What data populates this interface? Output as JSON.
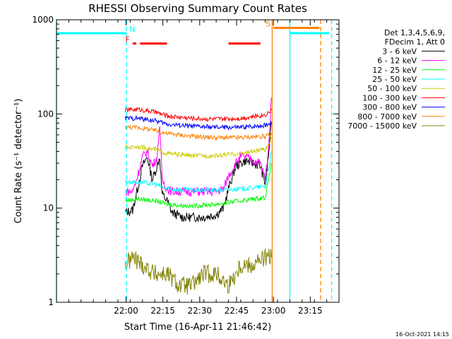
{
  "chart_data": {
    "type": "line",
    "title": "RHESSI Observing Summary Count Rates",
    "xlabel": "Start Time (16-Apr-11 21:46:42)",
    "ylabel": "Count Rate (s⁻¹ detector⁻¹)",
    "xlim_min": [
      -15,
      100
    ],
    "ylim": [
      1,
      1000
    ],
    "yscale": "log",
    "x_ticks": [
      {
        "label": "22:00",
        "min": 13.3
      },
      {
        "label": "22:15",
        "min": 28.3
      },
      {
        "label": "22:30",
        "min": 43.3
      },
      {
        "label": "22:45",
        "min": 58.3
      },
      {
        "label": "23:00",
        "min": 73.3
      },
      {
        "label": "23:15",
        "min": 88.3
      }
    ],
    "y_ticks": [
      {
        "label": "1",
        "value": 1
      },
      {
        "label": "10",
        "value": 10
      },
      {
        "label": "100",
        "value": 100
      },
      {
        "label": "1000",
        "value": 1000
      }
    ],
    "legend_header": [
      "Det 1,3,4,5,6,9,",
      "FDecim 1, Att 0"
    ],
    "series": [
      {
        "name": "3 - 6 keV",
        "color": "#000000",
        "x": [
          13,
          16,
          18,
          20,
          22,
          24,
          26,
          27,
          28,
          30,
          32,
          34,
          36,
          40,
          45,
          50,
          53,
          55,
          58,
          60,
          62,
          65,
          68,
          70,
          71.5,
          72.5
        ],
        "y": [
          9,
          9.5,
          16,
          28,
          35,
          20,
          28,
          35,
          14,
          12,
          9,
          8.5,
          8,
          8,
          8,
          8.5,
          10,
          16,
          28,
          30,
          32,
          30,
          28,
          18,
          40,
          80
        ]
      },
      {
        "name": "6 - 12 keV",
        "color": "#ff00ff",
        "x": [
          13,
          16,
          18,
          20,
          22,
          24,
          26,
          27,
          28,
          30,
          32,
          35,
          40,
          45,
          50,
          53,
          55,
          58,
          60,
          62,
          65,
          68,
          70,
          71.5,
          72.5
        ],
        "y": [
          15,
          15,
          22,
          35,
          40,
          28,
          35,
          80,
          20,
          16,
          15,
          15,
          15,
          15,
          15,
          16,
          22,
          30,
          35,
          35,
          32,
          30,
          20,
          50,
          150
        ]
      },
      {
        "name": "12 - 25 keV",
        "color": "#00ff00",
        "x": [
          13,
          18,
          25,
          30,
          40,
          50,
          60,
          70,
          72.5
        ],
        "y": [
          12,
          12.5,
          12,
          11,
          10.5,
          11,
          12,
          13,
          30
        ]
      },
      {
        "name": "25 - 50 keV",
        "color": "#00ffff",
        "x": [
          13,
          18,
          25,
          30,
          40,
          50,
          60,
          70,
          72.5
        ],
        "y": [
          19,
          19,
          18,
          16,
          15.5,
          15.5,
          16,
          17,
          40
        ]
      },
      {
        "name": "50 - 100 keV",
        "color": "#cccc00",
        "x": [
          13,
          18,
          25,
          30,
          40,
          50,
          60,
          70,
          72.5
        ],
        "y": [
          44,
          45,
          42,
          38,
          36,
          36,
          38,
          42,
          55
        ]
      },
      {
        "name": "100 - 300 keV",
        "color": "#ff0000",
        "x": [
          13,
          18,
          25,
          30,
          40,
          50,
          60,
          70,
          72.5
        ],
        "y": [
          110,
          112,
          105,
          95,
          90,
          88,
          90,
          98,
          110
        ]
      },
      {
        "name": "300 - 800 keV",
        "color": "#0000ff",
        "x": [
          13,
          18,
          25,
          30,
          40,
          50,
          60,
          70,
          72.5
        ],
        "y": [
          90,
          90,
          85,
          78,
          74,
          72,
          72,
          76,
          80
        ]
      },
      {
        "name": "800 - 7000 keV",
        "color": "#ff8000",
        "x": [
          13,
          18,
          25,
          30,
          40,
          50,
          60,
          70,
          72.5
        ],
        "y": [
          72,
          72,
          67,
          62,
          58,
          56,
          56,
          58,
          60
        ]
      },
      {
        "name": "7000 - 15000 keV",
        "color": "#808000",
        "x": [
          13,
          16,
          20,
          25,
          30,
          35,
          40,
          45,
          50,
          55,
          60,
          65,
          70,
          72.5
        ],
        "y": [
          2.5,
          3,
          2.5,
          2,
          2,
          1.5,
          1.5,
          2,
          2,
          1.5,
          2.5,
          2.5,
          3,
          3
        ]
      }
    ],
    "flags": [
      {
        "label": "N",
        "color": "#00ffff",
        "y": 720,
        "segments": [
          [
            -15,
            13.5
          ],
          [
            80,
            96
          ]
        ]
      },
      {
        "label": "S",
        "color": "#ff8000",
        "y": 820,
        "segments": [
          [
            73.3,
            92
          ]
        ]
      },
      {
        "label": "F",
        "color": "#ff0000",
        "y": 560,
        "segments": [
          [
            16,
            17.5
          ],
          [
            19,
            30
          ],
          [
            55,
            68
          ]
        ]
      }
    ],
    "markers": [
      {
        "color": "#00ffff",
        "style": "solid",
        "x": -15
      },
      {
        "color": "#00ffff",
        "style": "dashed",
        "x": 13.5
      },
      {
        "color": "#ff8000",
        "style": "solid",
        "x": 72.8
      },
      {
        "color": "#00ffff",
        "style": "solid",
        "x": 80
      },
      {
        "color": "#ff8000",
        "style": "dashed",
        "x": 92.5
      },
      {
        "color": "#00ffff",
        "style": "dashed",
        "x": 97
      }
    ],
    "footer": "16-Oct-2021 14:15"
  }
}
